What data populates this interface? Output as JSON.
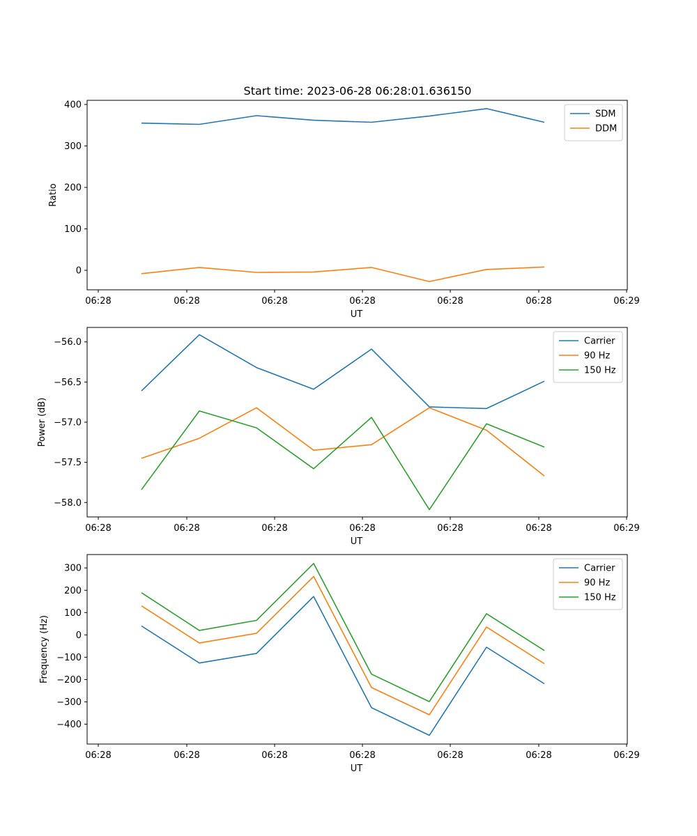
{
  "figure": {
    "title": "Start time: 2023-06-28 06:28:01.636150"
  },
  "chart_data": [
    {
      "type": "line",
      "title": "Start time: 2023-06-28 06:28:01.636150",
      "xlabel": "UT",
      "ylabel": "Ratio",
      "x_tick_labels": [
        "06:28",
        "06:28",
        "06:28",
        "06:28",
        "06:28",
        "06:28",
        "06:29"
      ],
      "y_ticks": [
        0,
        100,
        200,
        300,
        400
      ],
      "ylim": [
        -47,
        410
      ],
      "legend_position": "upper right",
      "grid": false,
      "series": [
        {
          "name": "SDM",
          "color": "#1f77b4",
          "values": [
            355,
            352,
            373,
            362,
            357,
            372,
            390,
            357
          ]
        },
        {
          "name": "DDM",
          "color": "#ff7f0e",
          "values": [
            -8,
            7,
            -5,
            -4,
            7,
            -27,
            2,
            8
          ]
        }
      ]
    },
    {
      "type": "line",
      "title": "",
      "xlabel": "UT",
      "ylabel": "Power (dB)",
      "x_tick_labels": [
        "06:28",
        "06:28",
        "06:28",
        "06:28",
        "06:28",
        "06:28",
        "06:29"
      ],
      "y_ticks": [
        -58.0,
        -57.5,
        -57.0,
        -56.5,
        -56.0
      ],
      "ylim": [
        -58.18,
        -55.82
      ],
      "legend_position": "upper right",
      "grid": false,
      "series": [
        {
          "name": "Carrier",
          "color": "#1f77b4",
          "values": [
            -56.61,
            -55.91,
            -56.32,
            -56.59,
            -56.09,
            -56.81,
            -56.83,
            -56.49
          ]
        },
        {
          "name": "90 Hz",
          "color": "#ff7f0e",
          "values": [
            -57.45,
            -57.2,
            -56.82,
            -57.35,
            -57.28,
            -56.82,
            -57.1,
            -57.67
          ]
        },
        {
          "name": "150 Hz",
          "color": "#2ca02c",
          "values": [
            -57.84,
            -56.86,
            -57.07,
            -57.58,
            -56.94,
            -58.09,
            -57.02,
            -57.31
          ]
        }
      ]
    },
    {
      "type": "line",
      "title": "",
      "xlabel": "UT",
      "ylabel": "Frequency (Hz)",
      "x_tick_labels": [
        "06:28",
        "06:28",
        "06:28",
        "06:28",
        "06:28",
        "06:28",
        "06:29"
      ],
      "y_ticks": [
        -400,
        -300,
        -200,
        -100,
        0,
        100,
        200,
        300
      ],
      "ylim": [
        -489,
        360
      ],
      "legend_position": "upper right",
      "grid": false,
      "series": [
        {
          "name": "Carrier",
          "color": "#1f77b4",
          "values": [
            40,
            -126,
            -83,
            172,
            -326,
            -450,
            -55,
            -219
          ]
        },
        {
          "name": "90 Hz",
          "color": "#ff7f0e",
          "values": [
            130,
            -36,
            7,
            262,
            -236,
            -358,
            35,
            -129
          ]
        },
        {
          "name": "150 Hz",
          "color": "#2ca02c",
          "values": [
            189,
            20,
            65,
            320,
            -176,
            -299,
            95,
            -70
          ]
        }
      ]
    }
  ]
}
